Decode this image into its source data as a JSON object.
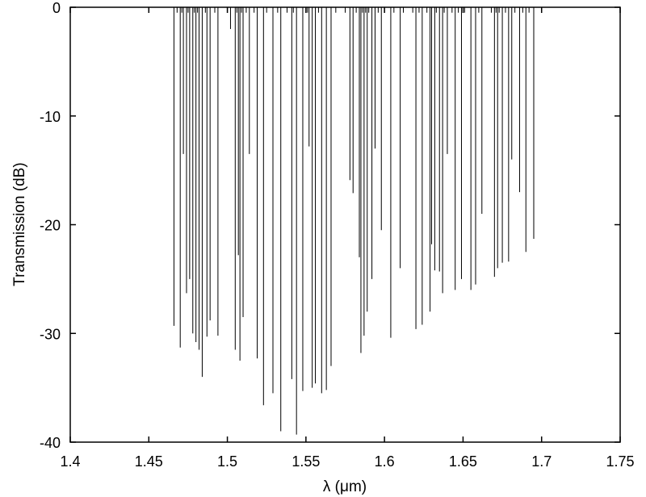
{
  "chart_data": {
    "type": "line",
    "title": "",
    "xlabel": "λ (μm)",
    "ylabel": "Transmission (dB)",
    "xlim": [
      1.4,
      1.75
    ],
    "ylim": [
      -40,
      0
    ],
    "xticks": [
      "1.4",
      "1.45",
      "1.5",
      "1.55",
      "1.6",
      "1.65",
      "1.7",
      "1.75"
    ],
    "yticks": [
      "0",
      "-10",
      "-20",
      "-30",
      "-40"
    ],
    "grid": false,
    "baseline": 0,
    "series": [
      {
        "style": "resonance dips from 0 dB",
        "points": [
          [
            1.466,
            -29.3
          ],
          [
            1.468,
            -0.5
          ],
          [
            1.47,
            -31.3
          ],
          [
            1.471,
            -0.5
          ],
          [
            1.472,
            -13.5
          ],
          [
            1.474,
            -26.3
          ],
          [
            1.475,
            -0.5
          ],
          [
            1.476,
            -25.0
          ],
          [
            1.478,
            -30.0
          ],
          [
            1.479,
            -0.5
          ],
          [
            1.48,
            -30.8
          ],
          [
            1.481,
            -0.5
          ],
          [
            1.482,
            -31.5
          ],
          [
            1.484,
            -34.0
          ],
          [
            1.486,
            -0.5
          ],
          [
            1.487,
            -30.3
          ],
          [
            1.489,
            -28.8
          ],
          [
            1.492,
            -0.5
          ],
          [
            1.494,
            -30.2
          ],
          [
            1.5,
            -0.5
          ],
          [
            1.502,
            -2.0
          ],
          [
            1.505,
            -31.5
          ],
          [
            1.506,
            -0.5
          ],
          [
            1.507,
            -22.8
          ],
          [
            1.508,
            -32.5
          ],
          [
            1.509,
            -0.5
          ],
          [
            1.51,
            -28.5
          ],
          [
            1.512,
            -0.5
          ],
          [
            1.514,
            -13.5
          ],
          [
            1.517,
            -0.5
          ],
          [
            1.519,
            -32.3
          ],
          [
            1.523,
            -36.6
          ],
          [
            1.525,
            -0.5
          ],
          [
            1.529,
            -35.5
          ],
          [
            1.532,
            -0.5
          ],
          [
            1.534,
            -39.0
          ],
          [
            1.538,
            -0.5
          ],
          [
            1.541,
            -34.2
          ],
          [
            1.542,
            -0.5
          ],
          [
            1.544,
            -39.3
          ],
          [
            1.548,
            -35.3
          ],
          [
            1.551,
            -0.5
          ],
          [
            1.552,
            -12.8
          ],
          [
            1.554,
            -35.0
          ],
          [
            1.556,
            -34.6
          ],
          [
            1.558,
            -0.5
          ],
          [
            1.56,
            -35.5
          ],
          [
            1.563,
            -35.2
          ],
          [
            1.566,
            -33.0
          ],
          [
            1.569,
            -0.5
          ],
          [
            1.575,
            -0.5
          ],
          [
            1.578,
            -15.9
          ],
          [
            1.58,
            -17.1
          ],
          [
            1.582,
            -0.5
          ],
          [
            1.584,
            -23.0
          ],
          [
            1.585,
            -31.8
          ],
          [
            1.586,
            -0.5
          ],
          [
            1.587,
            -30.2
          ],
          [
            1.588,
            -0.5
          ],
          [
            1.589,
            -28.0
          ],
          [
            1.59,
            -0.5
          ],
          [
            1.592,
            -25.0
          ],
          [
            1.594,
            -13.0
          ],
          [
            1.596,
            -0.5
          ],
          [
            1.598,
            -20.5
          ],
          [
            1.6,
            -0.5
          ],
          [
            1.604,
            -30.4
          ],
          [
            1.606,
            -0.5
          ],
          [
            1.61,
            -24.0
          ],
          [
            1.612,
            -0.5
          ],
          [
            1.618,
            -0.5
          ],
          [
            1.62,
            -29.6
          ],
          [
            1.622,
            -0.5
          ],
          [
            1.624,
            -29.2
          ],
          [
            1.627,
            -0.5
          ],
          [
            1.629,
            -28.0
          ],
          [
            1.63,
            -21.8
          ],
          [
            1.632,
            -24.2
          ],
          [
            1.633,
            -0.5
          ],
          [
            1.635,
            -24.3
          ],
          [
            1.637,
            -26.3
          ],
          [
            1.638,
            -0.5
          ],
          [
            1.64,
            -13.5
          ],
          [
            1.643,
            -0.5
          ],
          [
            1.645,
            -26.0
          ],
          [
            1.647,
            -0.5
          ],
          [
            1.649,
            -25.0
          ],
          [
            1.651,
            -0.5
          ],
          [
            1.655,
            -26.0
          ],
          [
            1.658,
            -25.5
          ],
          [
            1.66,
            -0.5
          ],
          [
            1.662,
            -19.0
          ],
          [
            1.668,
            -0.5
          ],
          [
            1.67,
            -24.8
          ],
          [
            1.671,
            -0.5
          ],
          [
            1.672,
            -24.0
          ],
          [
            1.673,
            -0.5
          ],
          [
            1.675,
            -23.5
          ],
          [
            1.677,
            -0.5
          ],
          [
            1.679,
            -23.4
          ],
          [
            1.681,
            -14.0
          ],
          [
            1.683,
            -0.5
          ],
          [
            1.686,
            -17.0
          ],
          [
            1.688,
            -0.5
          ],
          [
            1.69,
            -22.5
          ],
          [
            1.692,
            -0.5
          ],
          [
            1.695,
            -21.3
          ]
        ]
      }
    ]
  }
}
